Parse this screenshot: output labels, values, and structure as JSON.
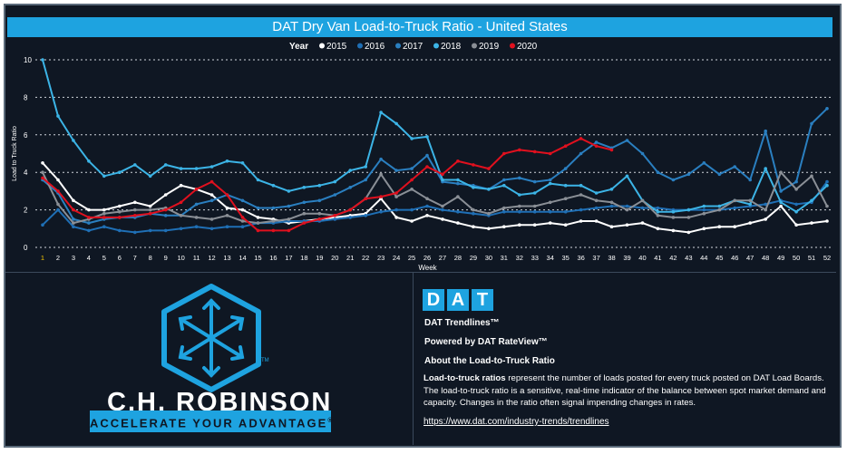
{
  "header": {
    "title": "DAT Dry Van Load-to-Truck Ratio - United States"
  },
  "chart_data": {
    "type": "line",
    "title": "DAT Dry Van Load-to-Truck Ratio - United States",
    "legend_title": "Year",
    "legend_position": "top-center",
    "xlabel": "Week",
    "ylabel": "Load to Truck Ratio",
    "ylim": [
      0,
      10
    ],
    "yticks": [
      0,
      2,
      4,
      6,
      8,
      10
    ],
    "grid": "horizontal dotted",
    "x": [
      1,
      2,
      3,
      4,
      5,
      6,
      7,
      8,
      9,
      10,
      11,
      12,
      13,
      14,
      15,
      16,
      17,
      18,
      19,
      20,
      21,
      22,
      23,
      24,
      25,
      26,
      27,
      28,
      29,
      30,
      31,
      32,
      33,
      34,
      35,
      36,
      37,
      38,
      39,
      40,
      41,
      42,
      43,
      44,
      45,
      46,
      47,
      48,
      49,
      50,
      51,
      52
    ],
    "series": [
      {
        "name": "2015",
        "color": "#ffffff",
        "values": [
          4.5,
          3.6,
          2.5,
          2.0,
          2.0,
          2.2,
          2.4,
          2.2,
          2.8,
          3.3,
          3.1,
          2.8,
          2.1,
          2.0,
          1.6,
          1.5,
          1.3,
          1.4,
          1.5,
          1.6,
          1.7,
          1.8,
          2.6,
          1.6,
          1.4,
          1.7,
          1.5,
          1.3,
          1.1,
          1.0,
          1.1,
          1.2,
          1.2,
          1.3,
          1.2,
          1.4,
          1.4,
          1.1,
          1.2,
          1.3,
          1.0,
          0.9,
          0.8,
          1.0,
          1.1,
          1.1,
          1.3,
          1.5,
          2.2,
          1.2,
          1.3,
          1.4
        ]
      },
      {
        "name": "2016",
        "color": "#1f6fb5",
        "values": [
          1.2,
          2.0,
          1.1,
          0.9,
          1.1,
          0.9,
          0.8,
          0.9,
          0.9,
          1.0,
          1.1,
          1.0,
          1.1,
          1.1,
          1.3,
          1.3,
          1.4,
          1.4,
          1.4,
          1.5,
          1.6,
          1.7,
          1.9,
          2.0,
          2.0,
          2.2,
          2.0,
          1.9,
          1.8,
          1.7,
          1.9,
          1.9,
          1.9,
          1.9,
          1.9,
          2.0,
          2.1,
          2.2,
          2.2,
          2.1,
          2.1,
          2.0,
          2.0,
          2.0,
          2.0,
          2.1,
          2.2,
          2.3,
          2.5,
          2.3,
          2.4,
          3.5
        ]
      },
      {
        "name": "2017",
        "color": "#2a7fc0",
        "values": [
          3.6,
          2.9,
          1.5,
          1.3,
          1.5,
          1.6,
          1.6,
          1.8,
          1.7,
          1.7,
          2.3,
          2.5,
          2.8,
          2.5,
          2.1,
          2.1,
          2.2,
          2.4,
          2.5,
          2.8,
          3.2,
          3.6,
          4.7,
          4.1,
          4.2,
          4.9,
          3.5,
          3.4,
          3.3,
          3.1,
          3.6,
          3.7,
          3.5,
          3.6,
          4.2,
          5.0,
          5.6,
          5.3,
          5.7,
          5.0,
          4.0,
          3.6,
          3.9,
          4.5,
          3.9,
          4.3,
          3.6,
          6.2,
          3.0,
          3.5,
          6.6,
          7.4
        ]
      },
      {
        "name": "2018",
        "color": "#3cb4e6",
        "values": [
          10.0,
          7.0,
          5.7,
          4.6,
          3.8,
          4.0,
          4.4,
          3.8,
          4.4,
          4.2,
          4.2,
          4.3,
          4.6,
          4.5,
          3.6,
          3.3,
          3.0,
          3.2,
          3.3,
          3.5,
          4.1,
          4.3,
          7.2,
          6.6,
          5.8,
          5.9,
          3.6,
          3.6,
          3.2,
          3.1,
          3.3,
          2.8,
          2.9,
          3.4,
          3.3,
          3.3,
          2.9,
          3.1,
          3.8,
          2.5,
          1.9,
          1.9,
          2.0,
          2.2,
          2.2,
          2.5,
          2.3,
          4.2,
          2.4,
          1.9,
          2.5,
          3.3
        ]
      },
      {
        "name": "2019",
        "color": "#8a8f96",
        "values": [
          4.0,
          2.3,
          1.3,
          1.5,
          1.8,
          1.9,
          2.0,
          2.0,
          2.1,
          1.7,
          1.6,
          1.5,
          1.7,
          1.4,
          1.3,
          1.4,
          1.5,
          1.8,
          1.8,
          1.7,
          2.0,
          2.6,
          3.9,
          2.7,
          3.1,
          2.6,
          2.2,
          2.7,
          2.0,
          1.8,
          2.1,
          2.2,
          2.2,
          2.4,
          2.6,
          2.8,
          2.5,
          2.4,
          2.0,
          2.5,
          1.7,
          1.6,
          1.6,
          1.8,
          2.0,
          2.5,
          2.5,
          2.0,
          4.0,
          3.1,
          3.8,
          2.2
        ]
      },
      {
        "name": "2020",
        "color": "#e0101e",
        "values": [
          3.7,
          3.0,
          2.0,
          1.6,
          1.6,
          1.6,
          1.7,
          1.8,
          2.0,
          2.4,
          3.1,
          3.5,
          2.8,
          1.6,
          0.9,
          0.9,
          0.9,
          1.3,
          1.5,
          1.7,
          2.0,
          2.6,
          2.7,
          2.9,
          3.6,
          4.3,
          3.9,
          4.6,
          4.4,
          4.2,
          5.0,
          5.2,
          5.1,
          5.0,
          5.4,
          5.8,
          5.4,
          5.2,
          null,
          null,
          null,
          null,
          null,
          null,
          null,
          null,
          null,
          null,
          null,
          null,
          null,
          null
        ]
      }
    ]
  },
  "brand": {
    "company_name": "C.H. ROBINSON",
    "tagline": "ACCELERATE YOUR ADVANTAGE",
    "tagline_mark": "®",
    "logo_mark": "TM",
    "logo_icon": "cube-arrows-icon"
  },
  "dat": {
    "logo_letters": [
      "D",
      "A",
      "T"
    ],
    "trendlines": "DAT Trendlines™",
    "powered_by": "Powered by DAT RateView™",
    "about": "About the Load-to-Truck Ratio",
    "desc_bold": "Load-to-truck ratios",
    "desc_rest": " represent the number of loads posted for every truck posted on DAT Load Boards.  The load-to-truck ratio is a sensitive, real-time indicator of the balance between spot market demand and capacity.  Changes in the ratio often signal impending changes in rates.",
    "link": "https://www.dat.com/industry-trends/trendlines"
  },
  "colors": {
    "accent": "#1ea3e0",
    "background": "#0f1723"
  }
}
